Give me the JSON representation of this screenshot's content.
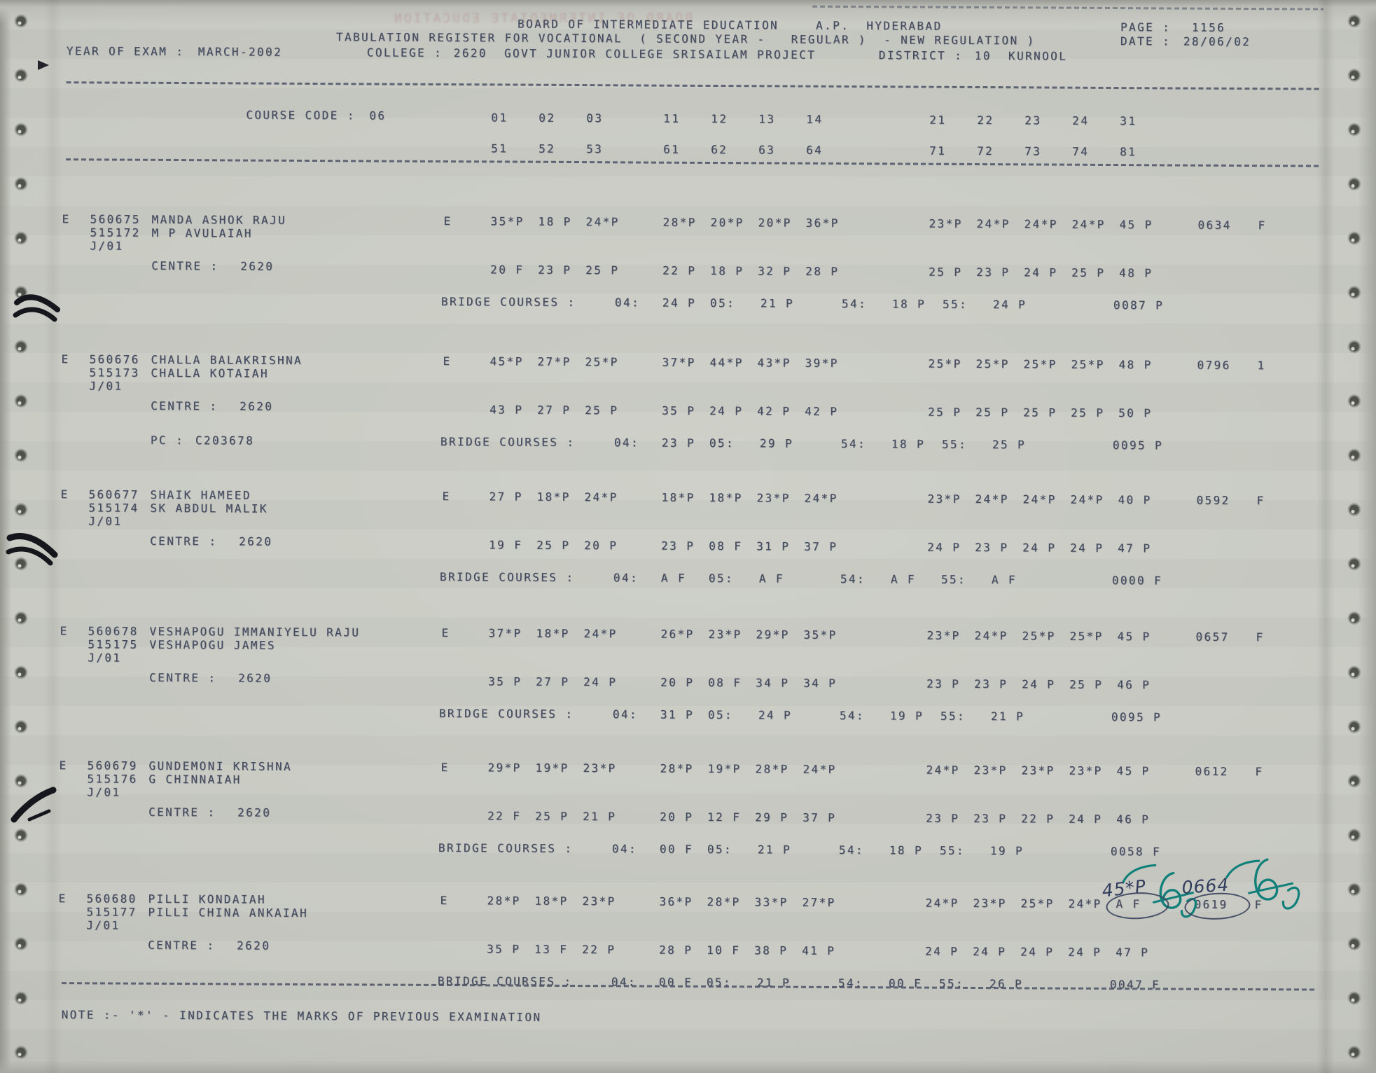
{
  "header": {
    "board_title": "BOARD OF INTERMEDIATE EDUCATION",
    "board_region": "A.P.  HYDERABAD",
    "page_label": "PAGE :",
    "page_value": "1156",
    "register_line": "TABULATION REGISTER FOR VOCATIONAL  ( SECOND YEAR -   REGULAR )  - NEW REGULATION )",
    "date_label": "DATE :",
    "date_value": "28/06/02",
    "year_label": "YEAR OF EXAM :",
    "year_value": "MARCH-2002",
    "college_label": "COLLEGE :",
    "college_value": "2620  GOVT JUNIOR COLLEGE SRISAILAM PROJECT",
    "district_label": "DISTRICT :",
    "district_value": "10  KURNOOL",
    "bleed_text": "BOARD OF INTERMEDIATE EDUCATION"
  },
  "course": {
    "label": "COURSE CODE :",
    "value": "06",
    "codes_row1": [
      "01",
      "02",
      "03",
      "11",
      "12",
      "13",
      "14",
      "21",
      "22",
      "23",
      "24",
      "31"
    ],
    "codes_row2": [
      "51",
      "52",
      "53",
      "61",
      "62",
      "63",
      "64",
      "71",
      "72",
      "73",
      "74",
      "81"
    ]
  },
  "records": [
    {
      "series": "E",
      "roll": "560675",
      "name": "MANDA ASHOK RAJU",
      "reg": "515172",
      "father": "M P AVULAIAH",
      "appl": "J/01",
      "centre_label": "CENTRE :",
      "centre": "2620",
      "medium": "E",
      "marks_row1": [
        "35*P",
        "18 P",
        "24*P",
        "28*P",
        "20*P",
        "20*P",
        "36*P",
        "23*P",
        "24*P",
        "24*P",
        "24*P",
        "45 P"
      ],
      "total": "0634",
      "result": "F",
      "marks_row2": [
        "20 F",
        "23 P",
        "25 P",
        "22 P",
        "18 P",
        "32 P",
        "28 P",
        "25 P",
        "23 P",
        "24 P",
        "25 P",
        "48 P"
      ],
      "bridge": {
        "label": "BRIDGE COURSES :",
        "s04_label": "04:",
        "s04": "24 P",
        "s05_label": "05:",
        "s05": "21 P",
        "s54_label": "54:",
        "s54": "18 P",
        "s55_label": "55:",
        "s55": "24 P",
        "total": "0087 P"
      }
    },
    {
      "series": "E",
      "roll": "560676",
      "name": "CHALLA BALAKRISHNA",
      "reg": "515173",
      "father": "CHALLA KOTAIAH",
      "appl": "J/01",
      "centre_label": "CENTRE :",
      "centre": "2620",
      "medium": "E",
      "pc_label": "PC :",
      "pc": "C203678",
      "marks_row1": [
        "45*P",
        "27*P",
        "25*P",
        "37*P",
        "44*P",
        "43*P",
        "39*P",
        "25*P",
        "25*P",
        "25*P",
        "25*P",
        "48 P"
      ],
      "total": "0796",
      "result": "1",
      "marks_row2": [
        "43 P",
        "27 P",
        "25 P",
        "35 P",
        "24 P",
        "42 P",
        "42 P",
        "25 P",
        "25 P",
        "25 P",
        "25 P",
        "50 P"
      ],
      "bridge": {
        "label": "BRIDGE COURSES :",
        "s04_label": "04:",
        "s04": "23 P",
        "s05_label": "05:",
        "s05": "29 P",
        "s54_label": "54:",
        "s54": "18 P",
        "s55_label": "55:",
        "s55": "25 P",
        "total": "0095 P"
      }
    },
    {
      "series": "E",
      "roll": "560677",
      "name": "SHAIK HAMEED",
      "reg": "515174",
      "father": "SK ABDUL MALIK",
      "appl": "J/01",
      "centre_label": "CENTRE :",
      "centre": "2620",
      "medium": "E",
      "marks_row1": [
        "27 P",
        "18*P",
        "24*P",
        "18*P",
        "18*P",
        "23*P",
        "24*P",
        "23*P",
        "24*P",
        "24*P",
        "24*P",
        "40 P"
      ],
      "total": "0592",
      "result": "F",
      "marks_row2": [
        "19 F",
        "25 P",
        "20 P",
        "23 P",
        "08 F",
        "31 P",
        "37 P",
        "24 P",
        "23 P",
        "24 P",
        "24 P",
        "47 P"
      ],
      "bridge": {
        "label": "BRIDGE COURSES :",
        "s04_label": "04:",
        "s04": "A F",
        "s05_label": "05:",
        "s05": "A F",
        "s54_label": "54:",
        "s54": "A F",
        "s55_label": "55:",
        "s55": "A F",
        "total": "0000 F"
      }
    },
    {
      "series": "E",
      "roll": "560678",
      "name": "VESHAPOGU IMMANIYELU RAJU",
      "reg": "515175",
      "father": "VESHAPOGU JAMES",
      "appl": "J/01",
      "centre_label": "CENTRE :",
      "centre": "2620",
      "medium": "E",
      "marks_row1": [
        "37*P",
        "18*P",
        "24*P",
        "26*P",
        "23*P",
        "29*P",
        "35*P",
        "23*P",
        "24*P",
        "25*P",
        "25*P",
        "45 P"
      ],
      "total": "0657",
      "result": "F",
      "marks_row2": [
        "35 P",
        "27 P",
        "24 P",
        "20 P",
        "08 F",
        "34 P",
        "34 P",
        "23 P",
        "23 P",
        "24 P",
        "25 P",
        "46 P"
      ],
      "bridge": {
        "label": "BRIDGE COURSES :",
        "s04_label": "04:",
        "s04": "31 P",
        "s05_label": "05:",
        "s05": "24 P",
        "s54_label": "54:",
        "s54": "19 P",
        "s55_label": "55:",
        "s55": "21 P",
        "total": "0095 P"
      }
    },
    {
      "series": "E",
      "roll": "560679",
      "name": "GUNDEMONI KRISHNA",
      "reg": "515176",
      "father": "G CHINNAIAH",
      "appl": "J/01",
      "centre_label": "CENTRE :",
      "centre": "2620",
      "medium": "E",
      "marks_row1": [
        "29*P",
        "19*P",
        "23*P",
        "28*P",
        "19*P",
        "28*P",
        "24*P",
        "24*P",
        "23*P",
        "23*P",
        "23*P",
        "45 P"
      ],
      "total": "0612",
      "result": "F",
      "marks_row2": [
        "22 F",
        "25 P",
        "21 P",
        "20 P",
        "12 F",
        "29 P",
        "37 P",
        "23 P",
        "23 P",
        "22 P",
        "24 P",
        "46 P"
      ],
      "bridge": {
        "label": "BRIDGE COURSES :",
        "s04_label": "04:",
        "s04": "00 F",
        "s05_label": "05:",
        "s05": "21 P",
        "s54_label": "54:",
        "s54": "18 P",
        "s55_label": "55:",
        "s55": "19 P",
        "total": "0058 F"
      }
    },
    {
      "series": "E",
      "roll": "560680",
      "name": "PILLI KONDAIAH",
      "reg": "515177",
      "father": "PILLI CHINA ANKAIAH",
      "appl": "J/01",
      "centre_label": "CENTRE :",
      "centre": "2620",
      "medium": "E",
      "marks_row1": [
        "28*P",
        "18*P",
        "23*P",
        "36*P",
        "28*P",
        "33*P",
        "27*P",
        "24*P",
        "23*P",
        "25*P",
        "24*P",
        "A F"
      ],
      "total": "0619",
      "result": "F",
      "marks_row2": [
        "35 P",
        "13 F",
        "22 P",
        "28 P",
        "10 F",
        "38 P",
        "41 P",
        "24 P",
        "24 P",
        "24 P",
        "24 P",
        "47 P"
      ],
      "bridge": {
        "label": "BRIDGE COURSES :",
        "s04_label": "04:",
        "s04": "00 F",
        "s05_label": "05:",
        "s05": "21 P",
        "s54_label": "54:",
        "s54": "00 F",
        "s55_label": "55:",
        "s55": "26 P",
        "total": "0047 F"
      }
    }
  ],
  "annotations": {
    "corrected_mark": "45*P",
    "corrected_total": "0664"
  },
  "note": "NOTE :- '*' - INDICATES THE MARKS OF PREVIOUS EXAMINATION",
  "colors": {
    "paper": "#c9cbc4",
    "print_ink": "#454b5e",
    "pen_ink": "#323c5c",
    "teal_ink": "#12807a"
  }
}
